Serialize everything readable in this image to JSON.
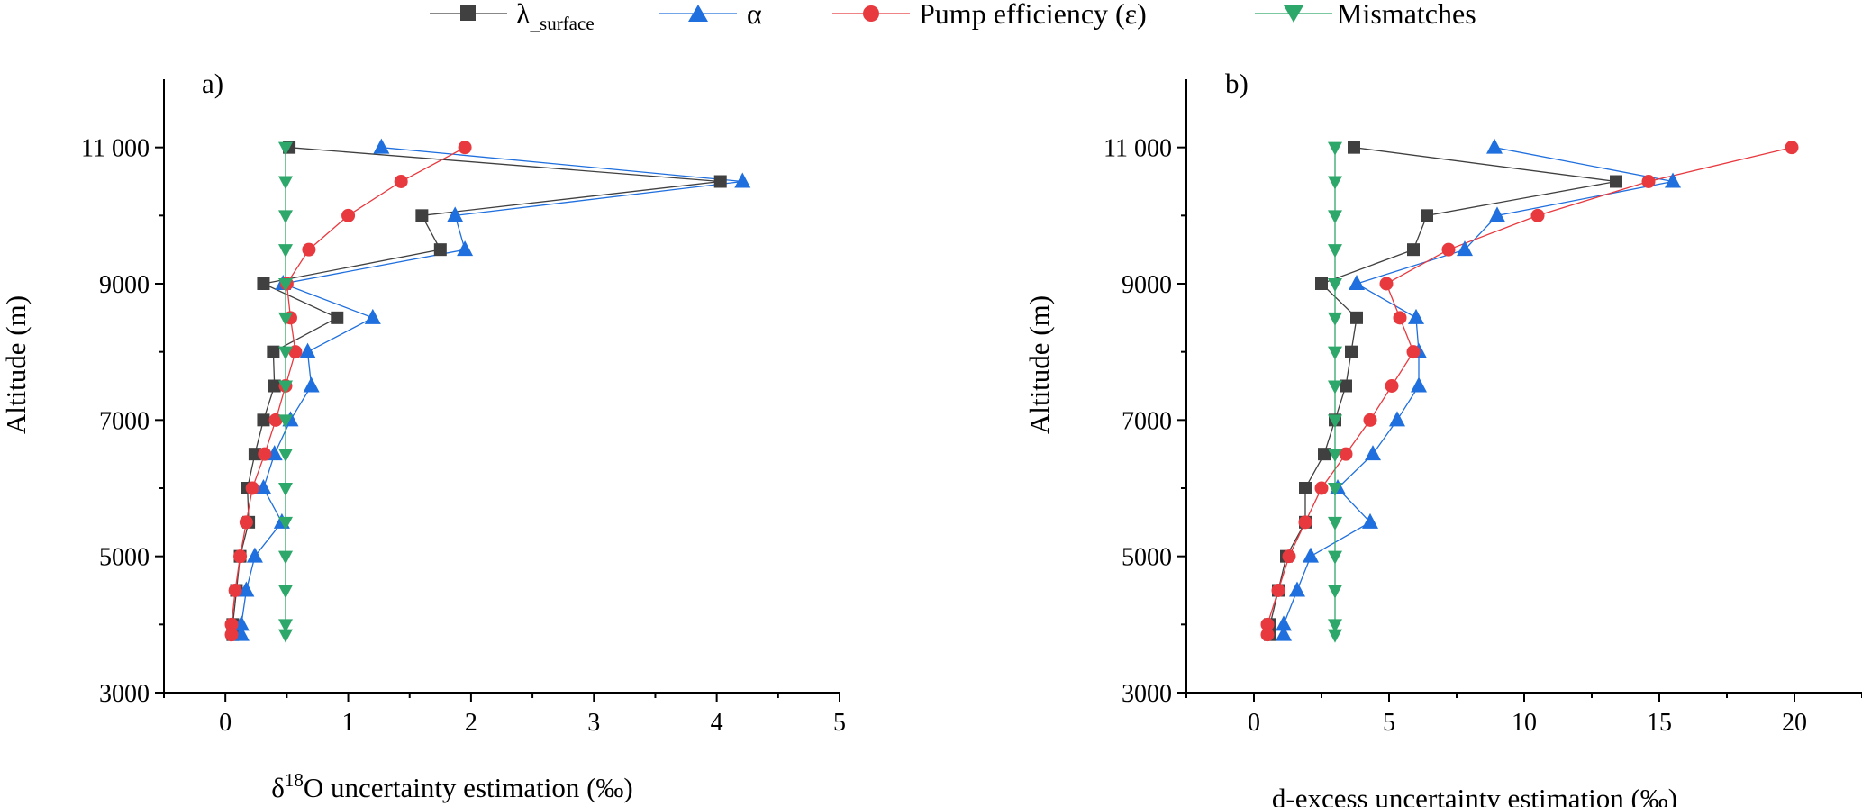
{
  "legend": [
    {
      "key": "lambda",
      "label": "λ",
      "label_sub": "_surface",
      "color": "#404040",
      "marker": "square"
    },
    {
      "key": "alpha",
      "label": "α",
      "label_sub": "",
      "color": "#1f6fde",
      "marker": "triangle-up"
    },
    {
      "key": "pump",
      "label": "Pump efficiency (ε)",
      "label_sub": "",
      "color": "#e8393f",
      "marker": "circle"
    },
    {
      "key": "mismatch",
      "label": "Mismatches",
      "label_sub": "",
      "color": "#2ea86a",
      "marker": "triangle-down"
    }
  ],
  "chart_data": [
    {
      "type": "line",
      "panel_label": "a)",
      "xlabel_prefix": "δ",
      "xlabel_sup": "18",
      "xlabel_suffix": "O uncertainty estimation (‰)",
      "ylabel": "Altitude (m)",
      "xlim": [
        -0.5,
        5
      ],
      "ylim": [
        3000,
        12000
      ],
      "xticks": [
        0,
        1,
        2,
        3,
        4,
        5
      ],
      "xtick_labels": [
        "0",
        "1",
        "2",
        "3",
        "4",
        "5"
      ],
      "yticks": [
        3000,
        5000,
        7000,
        9000,
        11000
      ],
      "ytick_labels": [
        "3000",
        "5000",
        "7000",
        "9000",
        "11 000"
      ],
      "y_minor_ticks": [
        4000,
        6000,
        8000,
        10000
      ],
      "series": [
        {
          "key": "lambda",
          "name": "λ_surface",
          "points": [
            [
              0.52,
              11000
            ],
            [
              4.03,
              10500
            ],
            [
              1.6,
              10000
            ],
            [
              1.75,
              9500
            ],
            [
              0.31,
              9000
            ],
            [
              0.91,
              8500
            ],
            [
              0.39,
              8000
            ],
            [
              0.4,
              7500
            ],
            [
              0.31,
              7000
            ],
            [
              0.24,
              6500
            ],
            [
              0.18,
              6000
            ],
            [
              0.19,
              5500
            ],
            [
              0.12,
              5000
            ],
            [
              0.09,
              4500
            ],
            [
              0.06,
              4000
            ],
            [
              0.06,
              3850
            ]
          ]
        },
        {
          "key": "alpha",
          "name": "α",
          "points": [
            [
              1.27,
              11000
            ],
            [
              4.21,
              10500
            ],
            [
              1.87,
              10000
            ],
            [
              1.95,
              9500
            ],
            [
              0.47,
              9000
            ],
            [
              1.2,
              8500
            ],
            [
              0.67,
              8000
            ],
            [
              0.7,
              7500
            ],
            [
              0.53,
              7000
            ],
            [
              0.4,
              6500
            ],
            [
              0.31,
              6000
            ],
            [
              0.46,
              5500
            ],
            [
              0.24,
              5000
            ],
            [
              0.17,
              4500
            ],
            [
              0.13,
              4000
            ],
            [
              0.13,
              3850
            ]
          ]
        },
        {
          "key": "pump",
          "name": "Pump efficiency (ε)",
          "points": [
            [
              1.95,
              11000
            ],
            [
              1.43,
              10500
            ],
            [
              1.0,
              10000
            ],
            [
              0.68,
              9500
            ],
            [
              0.5,
              9000
            ],
            [
              0.53,
              8500
            ],
            [
              0.57,
              8000
            ],
            [
              0.49,
              7500
            ],
            [
              0.41,
              7000
            ],
            [
              0.32,
              6500
            ],
            [
              0.22,
              6000
            ],
            [
              0.17,
              5500
            ],
            [
              0.12,
              5000
            ],
            [
              0.08,
              4500
            ],
            [
              0.05,
              4000
            ],
            [
              0.05,
              3850
            ]
          ]
        },
        {
          "key": "mismatch",
          "name": "Mismatches",
          "points": [
            [
              0.49,
              11000
            ],
            [
              0.49,
              10500
            ],
            [
              0.49,
              10000
            ],
            [
              0.49,
              9500
            ],
            [
              0.49,
              9000
            ],
            [
              0.49,
              8500
            ],
            [
              0.49,
              8000
            ],
            [
              0.49,
              7500
            ],
            [
              0.49,
              7000
            ],
            [
              0.49,
              6500
            ],
            [
              0.49,
              6000
            ],
            [
              0.49,
              5500
            ],
            [
              0.49,
              5000
            ],
            [
              0.49,
              4500
            ],
            [
              0.49,
              4000
            ],
            [
              0.49,
              3850
            ]
          ]
        }
      ]
    },
    {
      "type": "line",
      "panel_label": "b)",
      "xlabel_prefix": "",
      "xlabel_sup": "",
      "xlabel_suffix": "d-excess uncertainty estimation (‰)",
      "ylabel": "Altitude (m)",
      "xlim": [
        -2.5,
        22.5
      ],
      "ylim": [
        3000,
        12000
      ],
      "xticks": [
        0,
        5,
        10,
        15,
        20
      ],
      "xtick_labels": [
        "0",
        "5",
        "10",
        "15",
        "20"
      ],
      "yticks": [
        3000,
        5000,
        7000,
        9000,
        11000
      ],
      "ytick_labels": [
        "3000",
        "5000",
        "7000",
        "9000",
        "11 000"
      ],
      "y_minor_ticks": [
        4000,
        6000,
        8000,
        10000
      ],
      "series": [
        {
          "key": "lambda",
          "name": "λ_surface",
          "points": [
            [
              3.7,
              11000
            ],
            [
              13.4,
              10500
            ],
            [
              6.4,
              10000
            ],
            [
              5.9,
              9500
            ],
            [
              2.5,
              9000
            ],
            [
              3.8,
              8500
            ],
            [
              3.6,
              8000
            ],
            [
              3.4,
              7500
            ],
            [
              3.0,
              7000
            ],
            [
              2.6,
              6500
            ],
            [
              1.9,
              6000
            ],
            [
              1.9,
              5500
            ],
            [
              1.2,
              5000
            ],
            [
              0.9,
              4500
            ],
            [
              0.6,
              4000
            ],
            [
              0.6,
              3850
            ]
          ]
        },
        {
          "key": "alpha",
          "name": "α",
          "points": [
            [
              8.9,
              11000
            ],
            [
              15.5,
              10500
            ],
            [
              9.0,
              10000
            ],
            [
              7.8,
              9500
            ],
            [
              3.8,
              9000
            ],
            [
              6.0,
              8500
            ],
            [
              6.1,
              8000
            ],
            [
              6.1,
              7500
            ],
            [
              5.3,
              7000
            ],
            [
              4.4,
              6500
            ],
            [
              3.1,
              6000
            ],
            [
              4.3,
              5500
            ],
            [
              2.1,
              5000
            ],
            [
              1.6,
              4500
            ],
            [
              1.1,
              4000
            ],
            [
              1.1,
              3850
            ]
          ]
        },
        {
          "key": "pump",
          "name": "Pump efficiency (ε)",
          "points": [
            [
              19.9,
              11000
            ],
            [
              14.6,
              10500
            ],
            [
              10.5,
              10000
            ],
            [
              7.2,
              9500
            ],
            [
              4.9,
              9000
            ],
            [
              5.4,
              8500
            ],
            [
              5.9,
              8000
            ],
            [
              5.1,
              7500
            ],
            [
              4.3,
              7000
            ],
            [
              3.4,
              6500
            ],
            [
              2.5,
              6000
            ],
            [
              1.9,
              5500
            ],
            [
              1.3,
              5000
            ],
            [
              0.9,
              4500
            ],
            [
              0.5,
              4000
            ],
            [
              0.5,
              3850
            ]
          ]
        },
        {
          "key": "mismatch",
          "name": "Mismatches",
          "points": [
            [
              3.0,
              11000
            ],
            [
              3.0,
              10500
            ],
            [
              3.0,
              10000
            ],
            [
              3.0,
              9500
            ],
            [
              3.0,
              9000
            ],
            [
              3.0,
              8500
            ],
            [
              3.0,
              8000
            ],
            [
              3.0,
              7500
            ],
            [
              3.0,
              7000
            ],
            [
              3.0,
              6500
            ],
            [
              3.0,
              6000
            ],
            [
              3.0,
              5500
            ],
            [
              3.0,
              5000
            ],
            [
              3.0,
              4500
            ],
            [
              3.0,
              4000
            ],
            [
              3.0,
              3850
            ]
          ]
        }
      ]
    }
  ]
}
